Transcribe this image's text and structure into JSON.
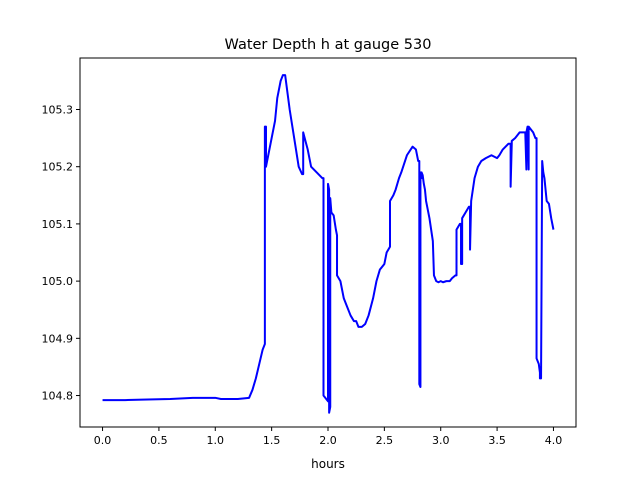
{
  "chart_data": {
    "type": "line",
    "title": "Water Depth h at gauge 530",
    "xlabel": "hours",
    "ylabel": "",
    "xlim": [
      -0.2,
      4.2
    ],
    "ylim": [
      104.745,
      105.39
    ],
    "xticks": [
      0.0,
      0.5,
      1.0,
      1.5,
      2.0,
      2.5,
      3.0,
      3.5,
      4.0
    ],
    "xtick_labels": [
      "0.0",
      "0.5",
      "1.0",
      "1.5",
      "2.0",
      "2.5",
      "3.0",
      "3.5",
      "4.0"
    ],
    "yticks": [
      104.8,
      104.9,
      105.0,
      105.1,
      105.2,
      105.3
    ],
    "ytick_labels": [
      "104.8",
      "104.9",
      "105.0",
      "105.1",
      "105.2",
      "105.3"
    ],
    "grid": false,
    "series": [
      {
        "color": "#0000ff",
        "x": [
          0.0,
          0.2,
          0.4,
          0.6,
          0.8,
          1.0,
          1.05,
          1.2,
          1.3,
          1.33,
          1.36,
          1.39,
          1.42,
          1.44,
          1.44,
          1.45,
          1.45,
          1.47,
          1.5,
          1.53,
          1.55,
          1.58,
          1.6,
          1.62,
          1.64,
          1.66,
          1.7,
          1.74,
          1.77,
          1.78,
          1.78,
          1.8,
          1.82,
          1.85,
          1.9,
          1.95,
          1.96,
          1.96,
          1.98,
          2.0,
          2.0,
          2.01,
          2.01,
          2.02,
          2.02,
          2.03,
          2.05,
          2.07,
          2.08,
          2.08,
          2.11,
          2.14,
          2.17,
          2.2,
          2.23,
          2.25,
          2.27,
          2.3,
          2.33,
          2.36,
          2.4,
          2.43,
          2.46,
          2.5,
          2.52,
          2.55,
          2.55,
          2.58,
          2.6,
          2.63,
          2.65,
          2.7,
          2.75,
          2.78,
          2.8,
          2.81,
          2.81,
          2.82,
          2.82,
          2.83,
          2.83,
          2.84,
          2.85,
          2.86,
          2.87,
          2.9,
          2.93,
          2.94,
          2.96,
          2.98,
          3.0,
          3.02,
          3.05,
          3.08,
          3.1,
          3.13,
          3.14,
          3.14,
          3.17,
          3.18,
          3.18,
          3.19,
          3.19,
          3.22,
          3.25,
          3.26,
          3.26,
          3.27,
          3.3,
          3.33,
          3.36,
          3.4,
          3.45,
          3.5,
          3.52,
          3.55,
          3.6,
          3.62,
          3.62,
          3.63,
          3.63,
          3.66,
          3.7,
          3.73,
          3.75,
          3.75,
          3.76,
          3.76,
          3.77,
          3.77,
          3.78,
          3.78,
          3.8,
          3.82,
          3.84,
          3.85,
          3.85,
          3.87,
          3.88,
          3.88,
          3.89,
          3.9,
          3.91,
          3.92,
          3.93,
          3.94,
          3.96,
          3.98,
          4.0
        ],
        "y": [
          104.792,
          104.792,
          104.793,
          104.794,
          104.796,
          104.796,
          104.794,
          104.794,
          104.796,
          104.81,
          104.83,
          104.855,
          104.88,
          104.89,
          105.27,
          105.27,
          105.2,
          105.22,
          105.25,
          105.28,
          105.32,
          105.35,
          105.36,
          105.36,
          105.33,
          105.3,
          105.25,
          105.2,
          105.187,
          105.187,
          105.26,
          105.245,
          105.23,
          105.2,
          105.19,
          105.18,
          105.18,
          104.8,
          104.795,
          104.79,
          105.17,
          105.16,
          104.77,
          104.78,
          105.145,
          105.12,
          105.115,
          105.09,
          105.08,
          105.01,
          105.0,
          104.97,
          104.955,
          104.94,
          104.93,
          104.93,
          104.92,
          104.92,
          104.925,
          104.94,
          104.97,
          105.0,
          105.02,
          105.03,
          105.05,
          105.06,
          105.14,
          105.15,
          105.16,
          105.18,
          105.19,
          105.22,
          105.235,
          105.23,
          105.21,
          105.21,
          104.82,
          104.815,
          105.19,
          105.18,
          105.19,
          105.185,
          105.17,
          105.16,
          105.14,
          105.11,
          105.07,
          105.01,
          105.0,
          104.998,
          105.0,
          104.998,
          105.0,
          105.0,
          105.005,
          105.01,
          105.01,
          105.09,
          105.1,
          105.1,
          105.03,
          105.03,
          105.11,
          105.12,
          105.13,
          105.13,
          105.055,
          105.14,
          105.18,
          105.2,
          105.21,
          105.215,
          105.22,
          105.215,
          105.22,
          105.23,
          105.24,
          105.24,
          105.165,
          105.24,
          105.245,
          105.25,
          105.26,
          105.26,
          105.26,
          105.26,
          105.195,
          105.26,
          105.27,
          105.27,
          105.195,
          105.27,
          105.265,
          105.26,
          105.25,
          105.25,
          104.865,
          104.855,
          104.84,
          104.83,
          104.83,
          105.21,
          105.19,
          105.18,
          105.16,
          105.14,
          105.135,
          105.11,
          105.09
        ]
      }
    ]
  }
}
